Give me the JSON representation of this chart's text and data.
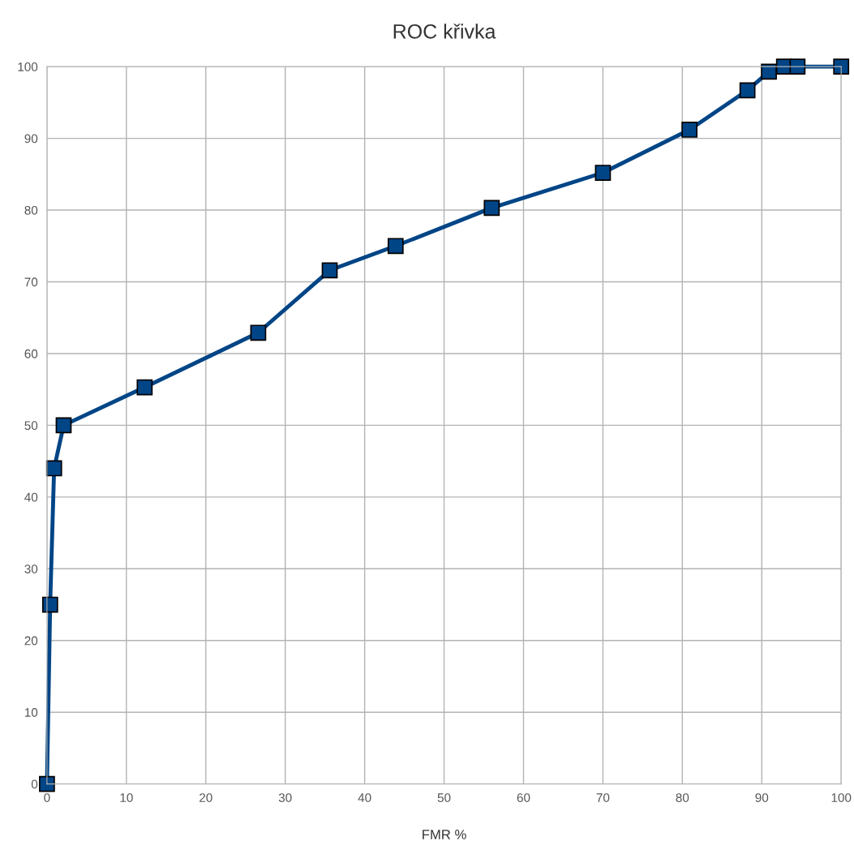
{
  "chart_data": {
    "type": "line",
    "title": "ROC křivka",
    "xlabel": "FMR %",
    "x": [
      0,
      0.4,
      0.9,
      2.1,
      12.3,
      26.6,
      35.6,
      43.9,
      56.0,
      70.0,
      80.9,
      88.2,
      90.9,
      92.8,
      94.5,
      100
    ],
    "series": [
      {
        "color": "#004586",
        "values": [
          0,
          25,
          44,
          50,
          55.3,
          62.9,
          71.6,
          75,
          80.3,
          85.2,
          91.2,
          96.7,
          99.3,
          100,
          100,
          100
        ]
      }
    ],
    "xlim": [
      0,
      100
    ],
    "ylim": [
      0,
      100
    ],
    "xticks": [
      0,
      10,
      20,
      30,
      40,
      50,
      60,
      70,
      80,
      90,
      100
    ],
    "yticks": [
      0,
      10,
      20,
      30,
      40,
      50,
      60,
      70,
      80,
      90,
      100
    ],
    "grid": true,
    "legend": false,
    "marker": "square",
    "line_style": "solid"
  }
}
